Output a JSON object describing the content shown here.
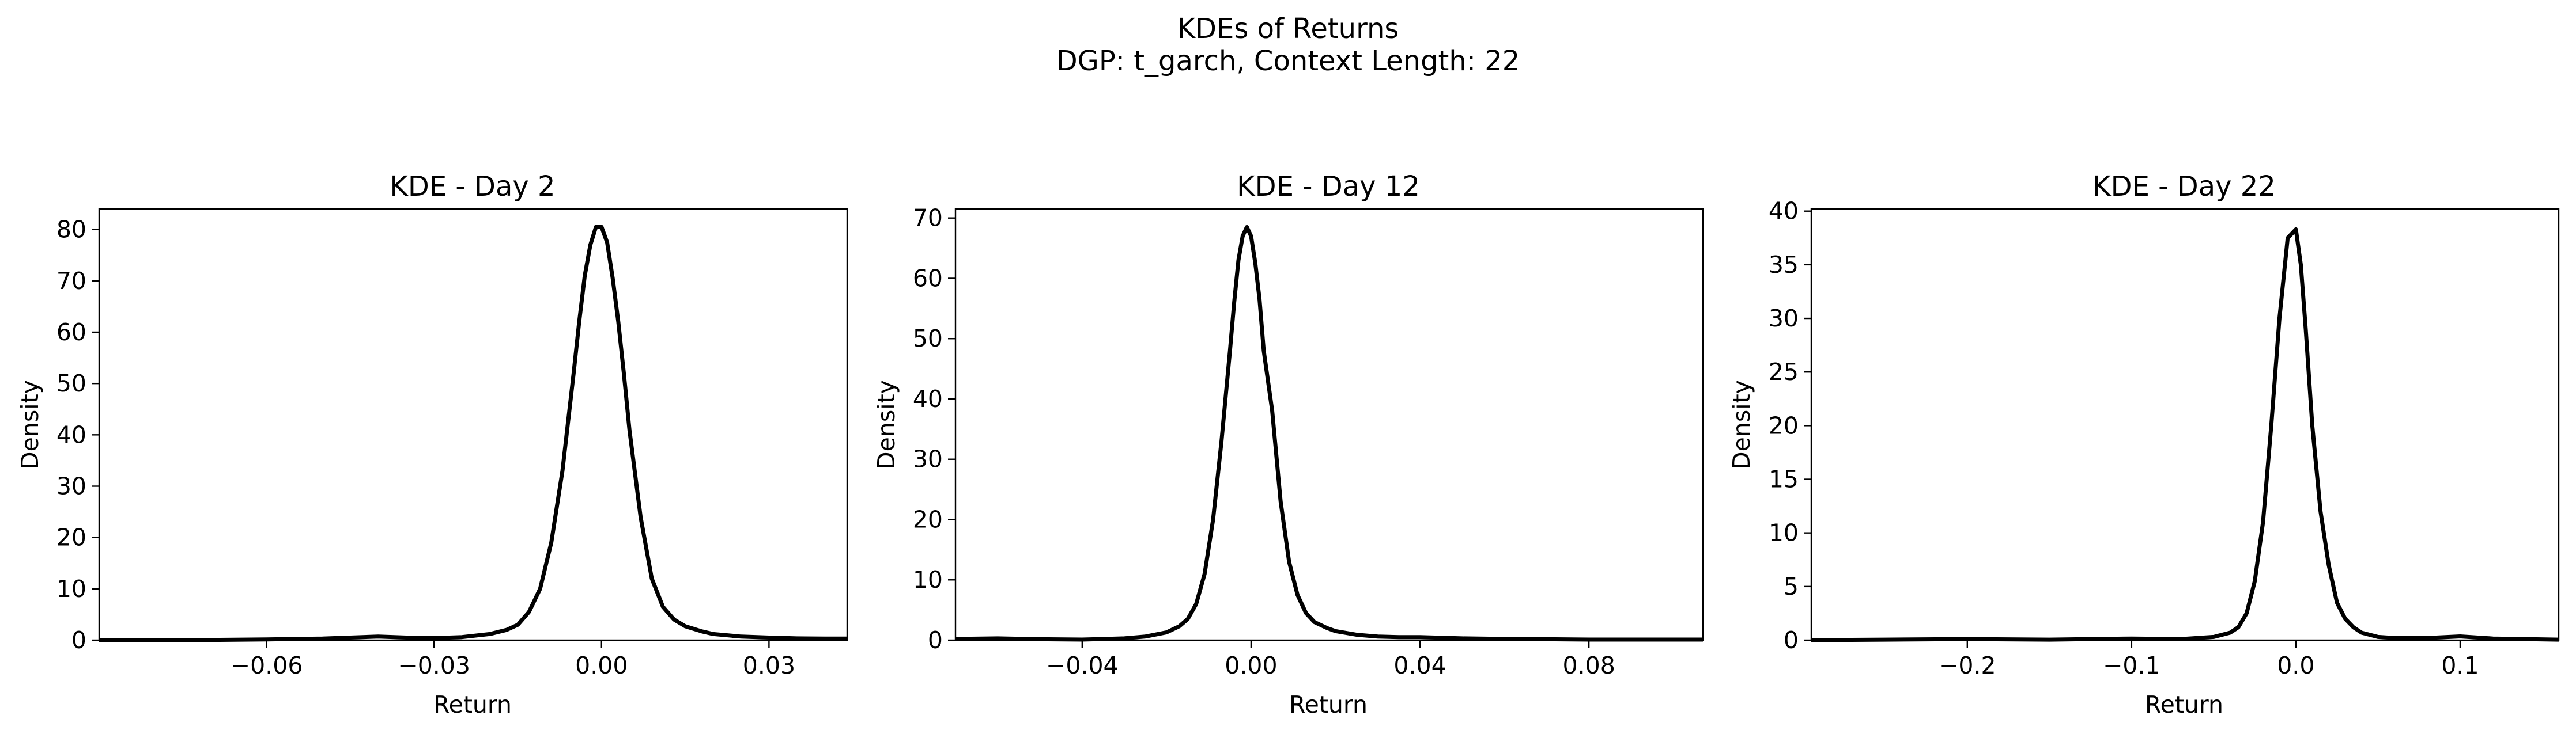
{
  "figure": {
    "suptitle_line1": "KDEs of Returns",
    "suptitle_line2": "DGP: t_garch, Context Length: 22",
    "line_color": "#000000"
  },
  "chart_data": [
    {
      "type": "line",
      "title": "KDE - Day 2",
      "xlabel": "Return",
      "ylabel": "Density",
      "xlim": [
        -0.09,
        0.044
      ],
      "ylim": [
        0,
        84
      ],
      "xticks": [
        -0.06,
        -0.03,
        0.0,
        0.03
      ],
      "xtick_labels": [
        "−0.06",
        "−0.03",
        "0.00",
        "0.03"
      ],
      "yticks": [
        0,
        10,
        20,
        30,
        40,
        50,
        60,
        70,
        80
      ],
      "yticks_labels": [
        "0",
        "10",
        "20",
        "30",
        "40",
        "50",
        "60",
        "70",
        "80"
      ],
      "grid": false,
      "series": [
        {
          "x": [
            -0.09,
            -0.07,
            -0.06,
            -0.05,
            -0.045,
            -0.04,
            -0.035,
            -0.03,
            -0.025,
            -0.02,
            -0.017,
            -0.015,
            -0.013,
            -0.011,
            -0.009,
            -0.007,
            -0.005,
            -0.004,
            -0.003,
            -0.002,
            -0.001,
            0.0,
            0.001,
            0.002,
            0.003,
            0.004,
            0.005,
            0.007,
            0.009,
            0.011,
            0.013,
            0.015,
            0.018,
            0.02,
            0.025,
            0.03,
            0.035,
            0.04,
            0.044
          ],
          "y": [
            0.0,
            0.05,
            0.15,
            0.3,
            0.5,
            0.7,
            0.5,
            0.4,
            0.6,
            1.2,
            2.0,
            3.0,
            5.5,
            10.0,
            19.0,
            33.0,
            52.0,
            62.0,
            71.0,
            77.0,
            80.5,
            80.5,
            77.5,
            70.5,
            62.0,
            52.0,
            41.0,
            24.0,
            12.0,
            6.5,
            4.0,
            2.7,
            1.7,
            1.2,
            0.7,
            0.5,
            0.35,
            0.3,
            0.3
          ]
        }
      ]
    },
    {
      "type": "line",
      "title": "KDE - Day 12",
      "xlabel": "Return",
      "ylabel": "Density",
      "xlim": [
        -0.07,
        0.107
      ],
      "ylim": [
        0,
        71.5
      ],
      "xticks": [
        -0.04,
        0.0,
        0.04,
        0.08
      ],
      "xtick_labels": [
        "−0.04",
        "0.00",
        "0.04",
        "0.08"
      ],
      "yticks": [
        0,
        10,
        20,
        30,
        40,
        50,
        60,
        70
      ],
      "yticks_labels": [
        "0",
        "10",
        "20",
        "30",
        "40",
        "50",
        "60",
        "70"
      ],
      "grid": false,
      "series": [
        {
          "x": [
            -0.07,
            -0.06,
            -0.05,
            -0.04,
            -0.03,
            -0.025,
            -0.02,
            -0.017,
            -0.015,
            -0.013,
            -0.011,
            -0.009,
            -0.007,
            -0.005,
            -0.004,
            -0.003,
            -0.002,
            -0.001,
            0.0,
            0.001,
            0.002,
            0.003,
            0.005,
            0.007,
            0.009,
            0.011,
            0.013,
            0.015,
            0.018,
            0.02,
            0.025,
            0.03,
            0.035,
            0.04,
            0.05,
            0.06,
            0.07,
            0.08,
            0.09,
            0.107
          ],
          "y": [
            0.2,
            0.3,
            0.15,
            0.1,
            0.3,
            0.6,
            1.3,
            2.3,
            3.5,
            6.0,
            11.0,
            20.0,
            33.0,
            48.0,
            56.0,
            63.0,
            67.0,
            68.5,
            67.0,
            62.5,
            56.5,
            48.0,
            38.0,
            23.0,
            13.0,
            7.5,
            4.5,
            3.0,
            2.0,
            1.5,
            0.9,
            0.6,
            0.5,
            0.5,
            0.3,
            0.2,
            0.15,
            0.1,
            0.1,
            0.1
          ]
        }
      ]
    },
    {
      "type": "line",
      "title": "KDE - Day 22",
      "xlabel": "Return",
      "ylabel": "Density",
      "xlim": [
        -0.295,
        0.16
      ],
      "ylim": [
        0,
        40.2
      ],
      "xticks": [
        -0.2,
        -0.1,
        0.0,
        0.1
      ],
      "xtick_labels": [
        "−0.2",
        "−0.1",
        "0.0",
        "0.1"
      ],
      "yticks": [
        0,
        5,
        10,
        15,
        20,
        25,
        30,
        35,
        40
      ],
      "yticks_labels": [
        "0",
        "5",
        "10",
        "15",
        "20",
        "25",
        "30",
        "35",
        "40"
      ],
      "grid": false,
      "series": [
        {
          "x": [
            -0.295,
            -0.25,
            -0.2,
            -0.15,
            -0.1,
            -0.07,
            -0.05,
            -0.04,
            -0.035,
            -0.03,
            -0.025,
            -0.02,
            -0.015,
            -0.01,
            -0.005,
            0.0,
            0.003,
            0.006,
            0.01,
            0.015,
            0.02,
            0.025,
            0.03,
            0.035,
            0.04,
            0.05,
            0.06,
            0.08,
            0.1,
            0.12,
            0.16
          ],
          "y": [
            0.0,
            0.05,
            0.1,
            0.05,
            0.15,
            0.1,
            0.3,
            0.7,
            1.2,
            2.5,
            5.5,
            11.0,
            20.0,
            30.0,
            37.5,
            38.3,
            35.0,
            29.0,
            20.0,
            12.0,
            7.0,
            3.5,
            2.0,
            1.2,
            0.7,
            0.3,
            0.2,
            0.2,
            0.35,
            0.15,
            0.05
          ]
        }
      ]
    }
  ]
}
